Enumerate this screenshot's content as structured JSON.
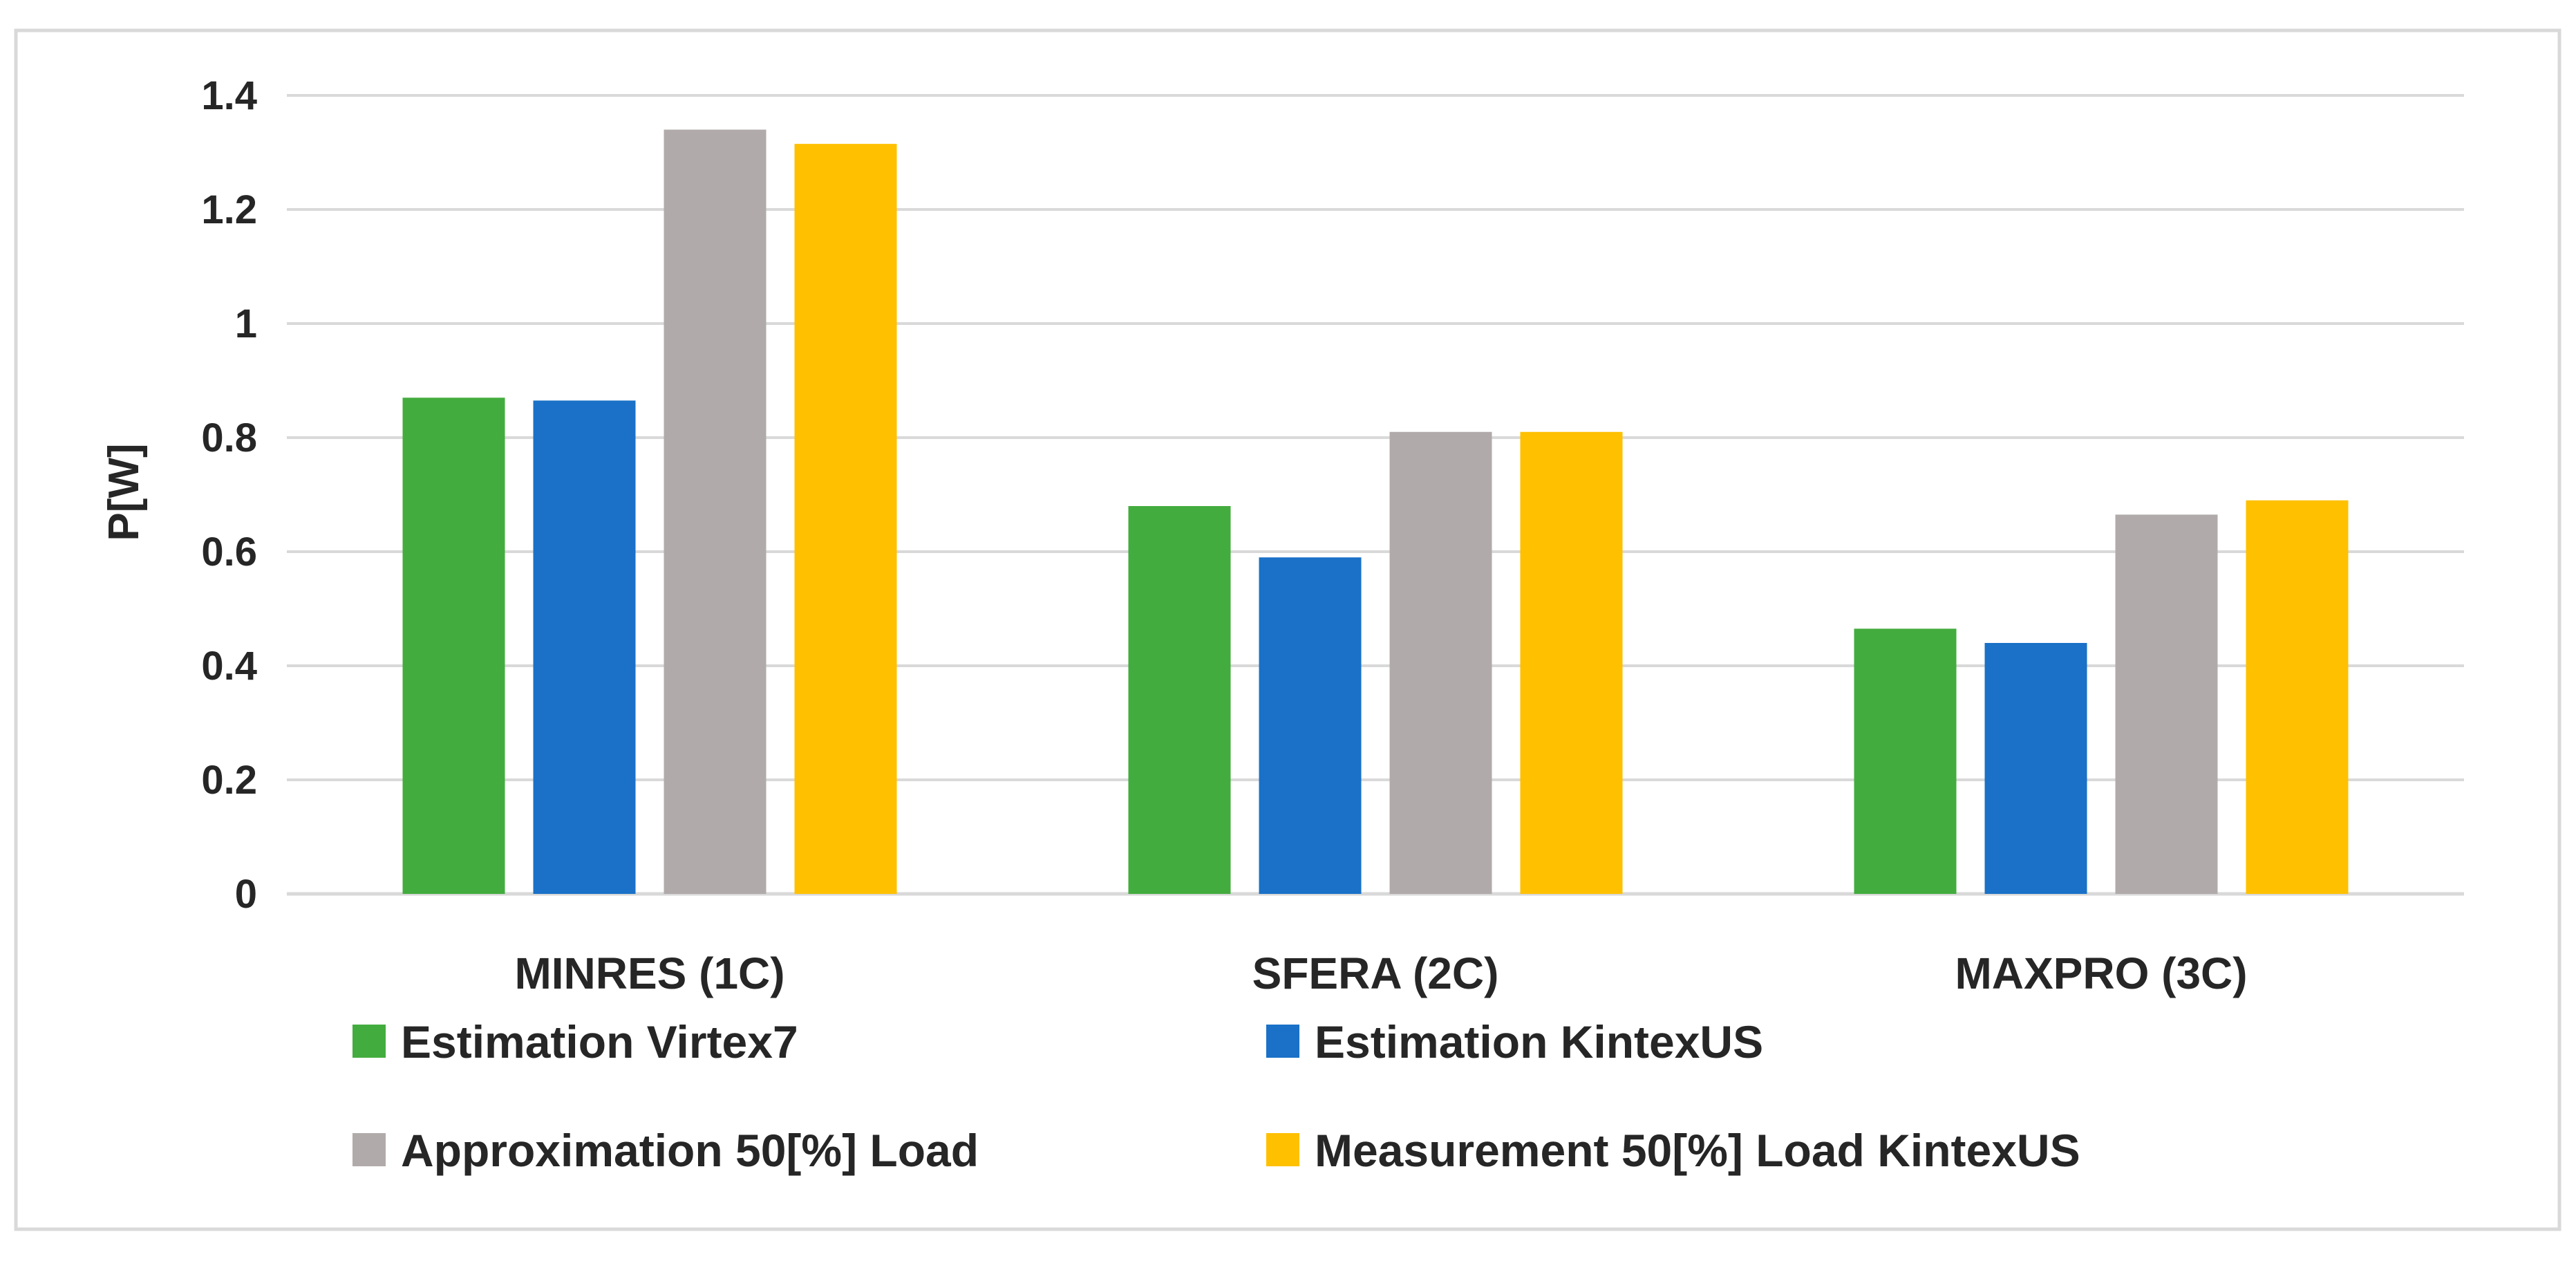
{
  "chart_data": {
    "type": "bar",
    "ylabel": "P[W]",
    "xlabel": "",
    "title": "",
    "ylim": [
      0,
      1.4
    ],
    "yticks": [
      0,
      0.2,
      0.4,
      0.6,
      0.8,
      1,
      1.2,
      1.4
    ],
    "ytick_labels": [
      "0",
      "0.2",
      "0.4",
      "0.6",
      "0.8",
      "1",
      "1.2",
      "1.4"
    ],
    "grid": true,
    "legend_position": "bottom",
    "categories": [
      "MINRES (1C)",
      "SFERA (2C)",
      "MAXPRO (3C)"
    ],
    "series": [
      {
        "name": "Estimation Virtex7",
        "color": "#43ac3e",
        "values": [
          0.87,
          0.68,
          0.465
        ]
      },
      {
        "name": "Estimation KintexUS",
        "color": "#1a71c7",
        "values": [
          0.865,
          0.59,
          0.44
        ]
      },
      {
        "name": "Approximation 50[%] Load",
        "color": "#b0abaa",
        "values": [
          1.34,
          0.81,
          0.665
        ]
      },
      {
        "name": "Measurement 50[%] Load KintexUS",
        "color": "#ffc000",
        "values": [
          1.315,
          0.81,
          0.69
        ]
      }
    ]
  },
  "colors": {
    "gridline": "#d9d9d9",
    "frame_border": "#d9d9d9",
    "text": "#262626"
  }
}
